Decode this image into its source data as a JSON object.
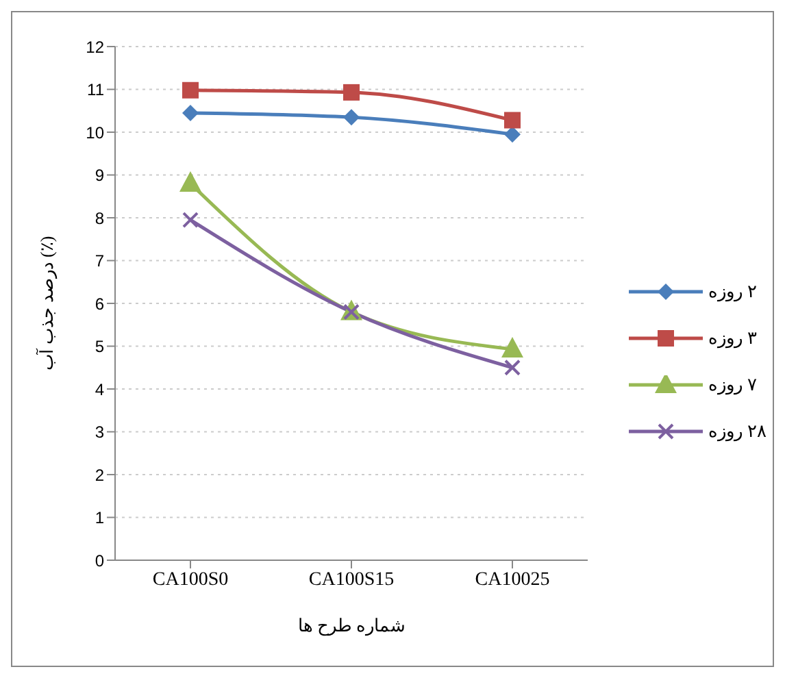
{
  "chart_data": {
    "type": "line",
    "xlabel": "شماره طرح ها",
    "ylabel": "درصد جذب آب (٪)",
    "categories": [
      "CA100S0",
      "CA100S15",
      "CA10025"
    ],
    "series": [
      {
        "name": "۲ روزه",
        "color": "#4a7ebb",
        "marker": "diamond",
        "values": [
          10.45,
          10.35,
          9.95
        ]
      },
      {
        "name": "۳ روزه",
        "color": "#be4b48",
        "marker": "square",
        "values": [
          10.98,
          10.93,
          10.28
        ]
      },
      {
        "name": "۷ روزه",
        "color": "#98b954",
        "marker": "triangle",
        "values": [
          8.8,
          5.8,
          4.93
        ]
      },
      {
        "name": "۲۸ روزه",
        "color": "#7d60a0",
        "marker": "cross",
        "values": [
          7.95,
          5.8,
          4.5
        ]
      }
    ],
    "ylim": [
      0,
      12
    ],
    "yticks": [
      0,
      1,
      2,
      3,
      4,
      5,
      6,
      7,
      8,
      9,
      10,
      11,
      12
    ],
    "grid": "y",
    "legend": "right"
  }
}
